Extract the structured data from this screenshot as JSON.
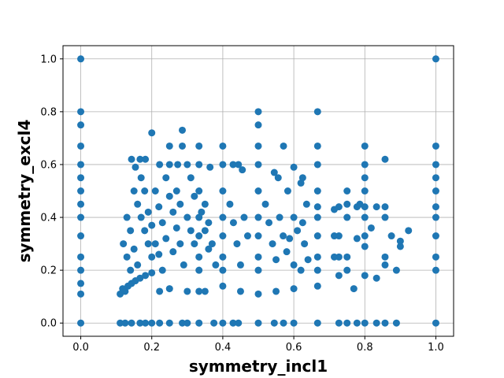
{
  "chart_data": {
    "type": "scatter",
    "title": "",
    "xlabel": "symmetry_incl1",
    "ylabel": "symmetry_excl4",
    "xlim": [
      -0.05,
      1.05
    ],
    "ylim": [
      -0.05,
      1.05
    ],
    "xticks": [
      0.0,
      0.2,
      0.4,
      0.6,
      0.8,
      1.0
    ],
    "yticks": [
      0.0,
      0.2,
      0.4,
      0.6,
      0.8,
      1.0
    ],
    "xtick_labels": [
      "0.0",
      "0.2",
      "0.4",
      "0.6",
      "0.8",
      "1.0"
    ],
    "ytick_labels": [
      "0.0",
      "0.2",
      "0.4",
      "0.6",
      "0.8",
      "1.0"
    ],
    "grid": true,
    "marker_color": "#1f77b4",
    "points": [
      [
        0.0,
        1.0
      ],
      [
        1.0,
        1.0
      ],
      [
        0.0,
        0.8
      ],
      [
        0.0,
        0.75
      ],
      [
        0.0,
        0.67
      ],
      [
        0.0,
        0.6
      ],
      [
        0.0,
        0.55
      ],
      [
        0.0,
        0.5
      ],
      [
        0.0,
        0.45
      ],
      [
        0.0,
        0.4
      ],
      [
        0.0,
        0.33
      ],
      [
        0.0,
        0.25
      ],
      [
        0.0,
        0.2
      ],
      [
        0.0,
        0.15
      ],
      [
        0.0,
        0.11
      ],
      [
        0.0,
        0.0
      ],
      [
        0.2,
        0.72
      ],
      [
        0.286,
        0.73
      ],
      [
        0.5,
        0.8
      ],
      [
        0.5,
        0.75
      ],
      [
        0.5,
        0.67
      ],
      [
        0.5,
        0.6
      ],
      [
        0.5,
        0.5
      ],
      [
        0.5,
        0.4
      ],
      [
        0.5,
        0.33
      ],
      [
        0.5,
        0.25
      ],
      [
        0.5,
        0.2
      ],
      [
        0.5,
        0.11
      ],
      [
        0.667,
        0.8
      ],
      [
        0.667,
        0.67
      ],
      [
        0.667,
        0.6
      ],
      [
        0.667,
        0.5
      ],
      [
        0.667,
        0.44
      ],
      [
        0.667,
        0.4
      ],
      [
        0.667,
        0.33
      ],
      [
        0.667,
        0.25
      ],
      [
        0.667,
        0.2
      ],
      [
        0.667,
        0.14
      ],
      [
        0.4,
        0.67
      ],
      [
        0.4,
        0.6
      ],
      [
        0.4,
        0.5
      ],
      [
        0.4,
        0.4
      ],
      [
        0.4,
        0.33
      ],
      [
        0.4,
        0.25
      ],
      [
        0.4,
        0.2
      ],
      [
        0.4,
        0.14
      ],
      [
        0.333,
        0.67
      ],
      [
        0.333,
        0.6
      ],
      [
        0.333,
        0.5
      ],
      [
        0.333,
        0.4
      ],
      [
        0.333,
        0.33
      ],
      [
        0.333,
        0.25
      ],
      [
        0.333,
        0.2
      ],
      [
        0.333,
        0.12
      ],
      [
        0.25,
        0.67
      ],
      [
        0.286,
        0.67
      ],
      [
        0.571,
        0.67
      ],
      [
        0.6,
        0.59
      ],
      [
        0.62,
        0.53
      ],
      [
        0.8,
        0.67
      ],
      [
        1.0,
        0.67
      ],
      [
        1.0,
        0.6
      ],
      [
        1.0,
        0.55
      ],
      [
        1.0,
        0.5
      ],
      [
        1.0,
        0.44
      ],
      [
        1.0,
        0.4
      ],
      [
        1.0,
        0.33
      ],
      [
        1.0,
        0.25
      ],
      [
        1.0,
        0.2
      ],
      [
        1.0,
        0.0
      ],
      [
        0.857,
        0.62
      ],
      [
        0.857,
        0.44
      ],
      [
        0.857,
        0.4
      ],
      [
        0.857,
        0.25
      ],
      [
        0.857,
        0.22
      ],
      [
        0.8,
        0.6
      ],
      [
        0.8,
        0.55
      ],
      [
        0.8,
        0.5
      ],
      [
        0.8,
        0.44
      ],
      [
        0.8,
        0.4
      ],
      [
        0.8,
        0.33
      ],
      [
        0.8,
        0.29
      ],
      [
        0.8,
        0.18
      ],
      [
        0.75,
        0.5
      ],
      [
        0.75,
        0.4
      ],
      [
        0.75,
        0.25
      ],
      [
        0.75,
        0.2
      ],
      [
        0.727,
        0.44
      ],
      [
        0.727,
        0.33
      ],
      [
        0.727,
        0.25
      ],
      [
        0.727,
        0.18
      ],
      [
        0.714,
        0.43
      ],
      [
        0.714,
        0.33
      ],
      [
        0.714,
        0.25
      ],
      [
        0.778,
        0.44
      ],
      [
        0.778,
        0.32
      ],
      [
        0.769,
        0.13
      ],
      [
        0.833,
        0.44
      ],
      [
        0.833,
        0.17
      ],
      [
        0.875,
        0.33
      ],
      [
        0.889,
        0.2
      ],
      [
        0.9,
        0.31
      ],
      [
        0.9,
        0.29
      ],
      [
        0.923,
        0.35
      ],
      [
        0.818,
        0.36
      ],
      [
        0.786,
        0.45
      ],
      [
        0.75,
        0.45
      ],
      [
        0.143,
        0.62
      ],
      [
        0.167,
        0.62
      ],
      [
        0.182,
        0.62
      ],
      [
        0.154,
        0.59
      ],
      [
        0.222,
        0.6
      ],
      [
        0.25,
        0.6
      ],
      [
        0.273,
        0.6
      ],
      [
        0.3,
        0.6
      ],
      [
        0.364,
        0.59
      ],
      [
        0.429,
        0.6
      ],
      [
        0.444,
        0.6
      ],
      [
        0.455,
        0.58
      ],
      [
        0.545,
        0.57
      ],
      [
        0.556,
        0.55
      ],
      [
        0.583,
        0.5
      ],
      [
        0.625,
        0.55
      ],
      [
        0.636,
        0.45
      ],
      [
        0.6,
        0.4
      ],
      [
        0.625,
        0.38
      ],
      [
        0.588,
        0.32
      ],
      [
        0.62,
        0.2
      ],
      [
        0.111,
        0.11
      ],
      [
        0.125,
        0.12
      ],
      [
        0.118,
        0.13
      ],
      [
        0.133,
        0.14
      ],
      [
        0.143,
        0.15
      ],
      [
        0.154,
        0.16
      ],
      [
        0.167,
        0.17
      ],
      [
        0.182,
        0.18
      ],
      [
        0.2,
        0.19
      ],
      [
        0.222,
        0.12
      ],
      [
        0.25,
        0.13
      ],
      [
        0.3,
        0.12
      ],
      [
        0.35,
        0.12
      ],
      [
        0.45,
        0.12
      ],
      [
        0.55,
        0.12
      ],
      [
        0.6,
        0.13
      ],
      [
        0.111,
        0.0
      ],
      [
        0.125,
        0.0
      ],
      [
        0.143,
        0.0
      ],
      [
        0.167,
        0.0
      ],
      [
        0.182,
        0.0
      ],
      [
        0.2,
        0.0
      ],
      [
        0.222,
        0.0
      ],
      [
        0.25,
        0.0
      ],
      [
        0.286,
        0.0
      ],
      [
        0.3,
        0.0
      ],
      [
        0.333,
        0.0
      ],
      [
        0.375,
        0.0
      ],
      [
        0.4,
        0.0
      ],
      [
        0.429,
        0.0
      ],
      [
        0.444,
        0.0
      ],
      [
        0.5,
        0.0
      ],
      [
        0.545,
        0.0
      ],
      [
        0.571,
        0.0
      ],
      [
        0.6,
        0.0
      ],
      [
        0.667,
        0.0
      ],
      [
        0.727,
        0.0
      ],
      [
        0.75,
        0.0
      ],
      [
        0.778,
        0.0
      ],
      [
        0.8,
        0.0
      ],
      [
        0.833,
        0.0
      ],
      [
        0.857,
        0.0
      ],
      [
        0.889,
        0.0
      ],
      [
        0.15,
        0.5
      ],
      [
        0.16,
        0.45
      ],
      [
        0.17,
        0.4
      ],
      [
        0.18,
        0.35
      ],
      [
        0.19,
        0.3
      ],
      [
        0.2,
        0.25
      ],
      [
        0.21,
        0.5
      ],
      [
        0.22,
        0.44
      ],
      [
        0.23,
        0.38
      ],
      [
        0.24,
        0.32
      ],
      [
        0.26,
        0.27
      ],
      [
        0.27,
        0.5
      ],
      [
        0.28,
        0.45
      ],
      [
        0.3,
        0.4
      ],
      [
        0.31,
        0.35
      ],
      [
        0.32,
        0.3
      ],
      [
        0.35,
        0.45
      ],
      [
        0.36,
        0.38
      ],
      [
        0.37,
        0.3
      ],
      [
        0.38,
        0.22
      ],
      [
        0.42,
        0.45
      ],
      [
        0.43,
        0.38
      ],
      [
        0.44,
        0.3
      ],
      [
        0.45,
        0.22
      ],
      [
        0.46,
        0.4
      ],
      [
        0.47,
        0.33
      ],
      [
        0.52,
        0.45
      ],
      [
        0.53,
        0.38
      ],
      [
        0.54,
        0.3
      ],
      [
        0.55,
        0.24
      ],
      [
        0.56,
        0.4
      ],
      [
        0.57,
        0.33
      ],
      [
        0.58,
        0.27
      ],
      [
        0.6,
        0.22
      ],
      [
        0.61,
        0.35
      ],
      [
        0.63,
        0.3
      ],
      [
        0.64,
        0.24
      ],
      [
        0.12,
        0.3
      ],
      [
        0.13,
        0.25
      ],
      [
        0.14,
        0.2
      ],
      [
        0.13,
        0.4
      ],
      [
        0.14,
        0.35
      ],
      [
        0.15,
        0.28
      ],
      [
        0.16,
        0.22
      ],
      [
        0.17,
        0.55
      ],
      [
        0.18,
        0.5
      ],
      [
        0.19,
        0.42
      ],
      [
        0.2,
        0.37
      ],
      [
        0.21,
        0.3
      ],
      [
        0.22,
        0.26
      ],
      [
        0.23,
        0.2
      ],
      [
        0.24,
        0.55
      ],
      [
        0.25,
        0.48
      ],
      [
        0.26,
        0.42
      ],
      [
        0.27,
        0.36
      ],
      [
        0.28,
        0.3
      ],
      [
        0.29,
        0.22
      ],
      [
        0.31,
        0.55
      ],
      [
        0.32,
        0.48
      ],
      [
        0.34,
        0.42
      ],
      [
        0.35,
        0.35
      ],
      [
        0.36,
        0.28
      ]
    ]
  }
}
